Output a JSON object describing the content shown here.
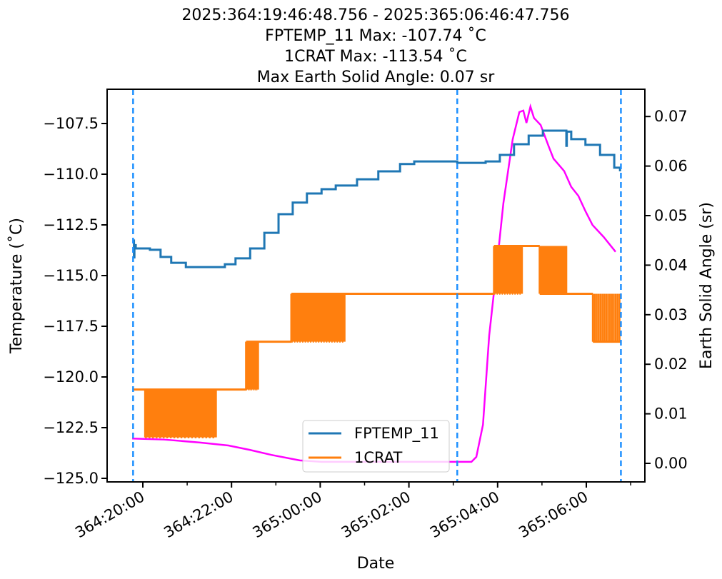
{
  "chart_data": {
    "type": "line",
    "title_lines": [
      "2025:364:19:46:48.756 - 2025:365:06:46:47.756",
      "FPTEMP_11 Max: -107.74 ˚C",
      "1CRAT Max: -113.54 ˚C",
      "Max Earth Solid Angle: 0.07 sr"
    ],
    "xlabel": "Date",
    "ylabel": "Temperature ($^\\circ$C)",
    "ylabel_text": "Temperature (˚C)",
    "y2label": "Earth Solid Angle (sr)",
    "x_units": "hours since 2025:364:00:00",
    "xlim": [
      19.2,
      31.3
    ],
    "ylim": [
      -125.18,
      -105.8
    ],
    "y2lim": [
      -0.0035,
      0.0745
    ],
    "xticks": [
      {
        "x": 20,
        "label": "364:20:00"
      },
      {
        "x": 22,
        "label": "364:22:00"
      },
      {
        "x": 24,
        "label": "365:00:00"
      },
      {
        "x": 26,
        "label": "365:02:00"
      },
      {
        "x": 28,
        "label": "365:04:00"
      },
      {
        "x": 30,
        "label": "365:06:00"
      }
    ],
    "xminor": [
      21,
      23,
      25,
      27,
      29,
      31
    ],
    "yticks": [
      {
        "v": -107.5,
        "label": "−107.5"
      },
      {
        "v": -110,
        "label": "−110.0"
      },
      {
        "v": -112.5,
        "label": "−112.5"
      },
      {
        "v": -115,
        "label": "−115.0"
      },
      {
        "v": -117.5,
        "label": "−117.5"
      },
      {
        "v": -120,
        "label": "−120.0"
      },
      {
        "v": -122.5,
        "label": "−122.5"
      },
      {
        "v": -125,
        "label": "−125.0"
      }
    ],
    "y2ticks": [
      {
        "v": 0,
        "label": "0.00"
      },
      {
        "v": 0.01,
        "label": "0.01"
      },
      {
        "v": 0.02,
        "label": "0.02"
      },
      {
        "v": 0.03,
        "label": "0.03"
      },
      {
        "v": 0.04,
        "label": "0.04"
      },
      {
        "v": 0.05,
        "label": "0.05"
      },
      {
        "v": 0.06,
        "label": "0.06"
      },
      {
        "v": 0.07,
        "label": "0.07"
      }
    ],
    "vlines": [
      19.78,
      27.09,
      30.78
    ],
    "legend": {
      "placement": "lower-center",
      "entries": [
        "FPTEMP_11",
        "1CRAT"
      ]
    },
    "colors": {
      "FPTEMP_11": "#1f77b4",
      "1CRAT": "#ff7f0e",
      "earth": "#ff00ff",
      "vline": "#1e90ff"
    },
    "series": [
      {
        "name": "FPTEMP_11",
        "axis": "left",
        "x": [
          19.79,
          19.8,
          19.81,
          19.84,
          20.16,
          20.4,
          20.64,
          20.97,
          21.61,
          21.85,
          22.09,
          22.42,
          22.74,
          23.06,
          23.38,
          23.7,
          24.03,
          24.35,
          24.83,
          25.31,
          25.8,
          26.12,
          27.09,
          27.73,
          28.05,
          28.37,
          28.7,
          29.02,
          29.5,
          29.55,
          29.56,
          29.66,
          29.98,
          30.31,
          30.63,
          30.76
        ],
        "y": [
          -113.27,
          -114.1,
          -113.5,
          -113.66,
          -113.73,
          -114.08,
          -114.37,
          -114.58,
          -114.58,
          -114.44,
          -114.15,
          -113.66,
          -112.89,
          -111.97,
          -111.4,
          -110.95,
          -110.74,
          -110.56,
          -110.25,
          -109.86,
          -109.5,
          -109.37,
          -109.44,
          -109.37,
          -109.05,
          -108.52,
          -108.1,
          -107.85,
          -107.85,
          -108.6,
          -107.9,
          -108.27,
          -108.55,
          -109.05,
          -109.68,
          -109.86
        ]
      },
      {
        "name": "Earth Solid Angle",
        "axis": "right",
        "x": [
          19.76,
          20.48,
          21.29,
          21.93,
          22.42,
          22.9,
          23.54,
          24.03,
          27.41,
          27.52,
          27.67,
          27.81,
          27.97,
          28.13,
          28.34,
          28.49,
          28.58,
          28.65,
          28.74,
          28.82,
          28.97,
          29.15,
          29.26,
          29.5,
          29.66,
          29.82,
          29.98,
          30.14,
          30.39,
          30.66
        ],
        "y": [
          0.005,
          0.0048,
          0.0042,
          0.0036,
          0.0027,
          0.0017,
          0.0006,
          0.0003,
          0.0003,
          0.0013,
          0.0078,
          0.0258,
          0.0388,
          0.0525,
          0.0654,
          0.0709,
          0.0712,
          0.0687,
          0.072,
          0.0697,
          0.0683,
          0.064,
          0.0615,
          0.059,
          0.0558,
          0.054,
          0.0509,
          0.0481,
          0.0457,
          0.0427
        ]
      },
      {
        "name": "1CRAT",
        "axis": "left",
        "steps": [
          {
            "start": 19.78,
            "end": 22.33,
            "value": -120.62
          },
          {
            "start": 22.33,
            "end": 23.35,
            "value": -118.26
          },
          {
            "start": 23.35,
            "end": 27.92,
            "value": -115.9
          },
          {
            "start": 27.92,
            "end": 28.95,
            "value": -113.54
          },
          {
            "start": 28.95,
            "end": 30.15,
            "value": -115.9
          },
          {
            "start": 30.15,
            "end": 30.78,
            "value": -118.26
          }
        ],
        "oscillations": [
          {
            "start": 20.05,
            "end": 21.65,
            "levels": [
              -120.62,
              -122.98
            ],
            "count": 40
          },
          {
            "start": 22.33,
            "end": 22.6,
            "levels": [
              -118.26,
              -120.62
            ],
            "count": 14
          },
          {
            "start": 23.35,
            "end": 24.55,
            "levels": [
              -115.9,
              -118.26
            ],
            "count": 40
          },
          {
            "start": 27.92,
            "end": 28.55,
            "levels": [
              -113.54,
              -115.9
            ],
            "count": 22
          },
          {
            "start": 28.95,
            "end": 29.55,
            "levels": [
              -113.54,
              -115.9
            ],
            "count": 18
          },
          {
            "start": 30.15,
            "end": 30.75,
            "levels": [
              -115.9,
              -118.26
            ],
            "count": 14
          }
        ]
      }
    ]
  }
}
